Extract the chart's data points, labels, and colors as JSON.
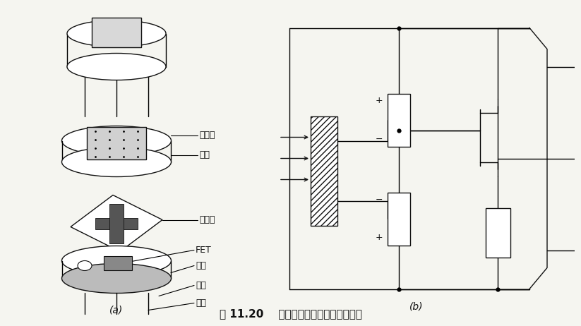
{
  "title": "图 11.20    热释电人体红外传感器的结构",
  "label_a": "(a)",
  "label_b": "(b)",
  "bg_color": "#f5f5f0",
  "line_color": "#111111",
  "lw": 1.0
}
